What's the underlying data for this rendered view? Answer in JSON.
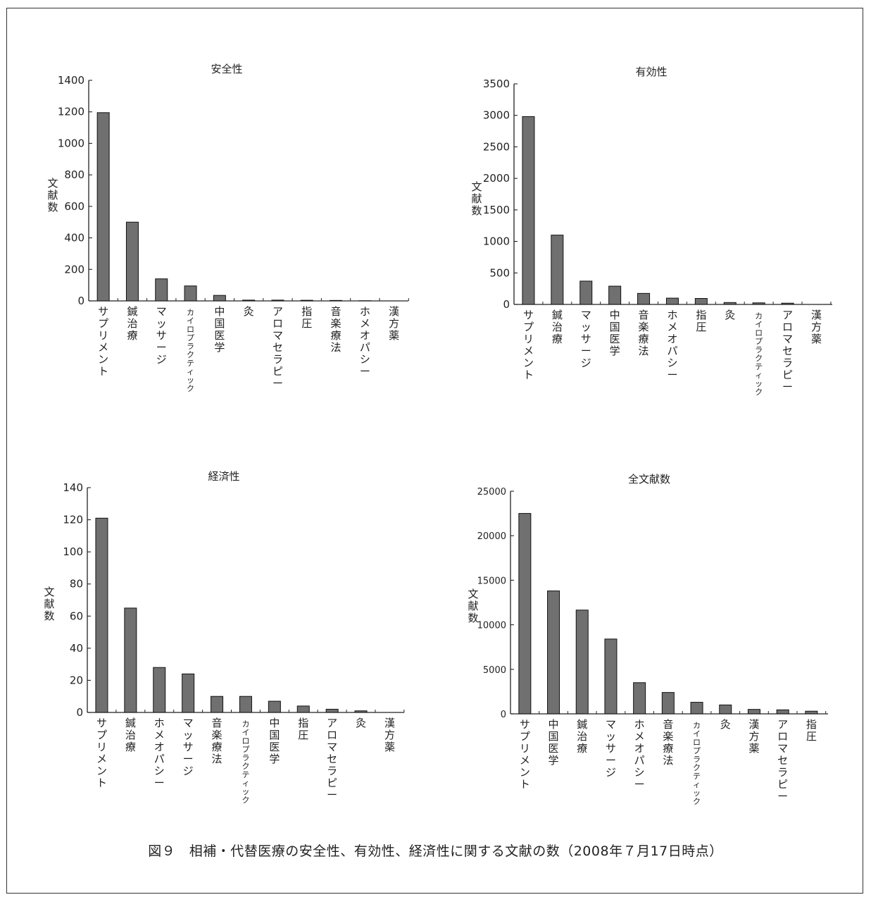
{
  "caption": "図９　相補・代替医療の安全性、有効性、経済性に関する文献の数（2008年７月17日時点）",
  "ylabel": "文献数",
  "bar_color": "#707070",
  "chart_data": [
    {
      "type": "bar",
      "title": "安全性",
      "ylabel": "文献数",
      "ylim": [
        0,
        1400
      ],
      "yticks": [
        0,
        200,
        400,
        600,
        800,
        1000,
        1200,
        1400
      ],
      "categories": [
        "サプリメント",
        "鍼治療",
        "マッサージ",
        "カイロプラクティック",
        "中国医学",
        "灸",
        "アロマセラピー",
        "指圧",
        "音楽療法",
        "ホメオパシー",
        "漢方薬"
      ],
      "values": [
        1195,
        500,
        140,
        95,
        35,
        5,
        5,
        4,
        3,
        1,
        0
      ]
    },
    {
      "type": "bar",
      "title": "有効性",
      "ylabel": "文献数",
      "ylim": [
        0,
        3500
      ],
      "yticks": [
        0,
        500,
        1000,
        1500,
        2000,
        2500,
        3000,
        3500
      ],
      "categories": [
        "サプリメント",
        "鍼治療",
        "マッサージ",
        "中国医学",
        "音楽療法",
        "ホメオパシー",
        "指圧",
        "灸",
        "カイロプラクティック",
        "アロマセラピー",
        "漢方薬"
      ],
      "values": [
        2980,
        1100,
        370,
        290,
        175,
        100,
        95,
        30,
        25,
        20,
        0
      ]
    },
    {
      "type": "bar",
      "title": "経済性",
      "ylabel": "文献数",
      "ylim": [
        0,
        140
      ],
      "yticks": [
        0,
        20,
        40,
        60,
        80,
        100,
        120,
        140
      ],
      "categories": [
        "サプリメント",
        "鍼治療",
        "ホメオパシー",
        "マッサージ",
        "音楽療法",
        "カイロプラクティック",
        "中国医学",
        "指圧",
        "アロマセラピー",
        "灸",
        "漢方薬"
      ],
      "values": [
        121,
        65,
        28,
        24,
        10,
        10,
        7,
        4,
        2,
        1,
        0
      ]
    },
    {
      "type": "bar",
      "title": "全文献数",
      "ylabel": "文献数",
      "ylim": [
        0,
        25000
      ],
      "yticks": [
        0,
        5000,
        10000,
        15000,
        20000,
        25000
      ],
      "categories": [
        "サプリメント",
        "中国医学",
        "鍼治療",
        "マッサージ",
        "ホメオパシー",
        "音楽療法",
        "カイロプラクティック",
        "灸",
        "漢方薬",
        "アロマセラピー",
        "指圧"
      ],
      "values": [
        22500,
        13800,
        11650,
        8400,
        3500,
        2400,
        1300,
        1000,
        500,
        450,
        300
      ]
    }
  ]
}
